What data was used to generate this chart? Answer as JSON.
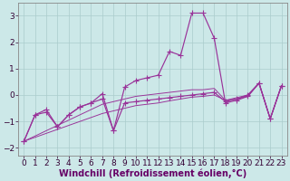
{
  "bg_color": "#cce8e8",
  "grid_color": "#aacccc",
  "line_color": "#993399",
  "xlim": [
    -0.5,
    23.5
  ],
  "ylim": [
    -2.3,
    3.5
  ],
  "xticks": [
    0,
    1,
    2,
    3,
    4,
    5,
    6,
    7,
    8,
    9,
    10,
    11,
    12,
    13,
    14,
    15,
    16,
    17,
    18,
    19,
    20,
    21,
    22,
    23
  ],
  "yticks": [
    -2,
    -1,
    0,
    1,
    2,
    3
  ],
  "x_data": [
    0,
    1,
    2,
    3,
    4,
    5,
    6,
    7,
    8,
    9,
    10,
    11,
    12,
    13,
    14,
    15,
    16,
    17,
    18,
    19,
    20,
    21,
    22,
    23
  ],
  "line_main_y": [
    -1.75,
    -0.75,
    -0.65,
    -1.2,
    -0.75,
    -0.45,
    -0.3,
    0.05,
    -1.35,
    0.3,
    0.55,
    0.65,
    0.75,
    1.65,
    1.5,
    3.1,
    3.1,
    2.15,
    -0.3,
    -0.2,
    -0.05,
    0.45,
    -0.9,
    0.35
  ],
  "line_zigzag_y": [
    -1.75,
    -0.75,
    -0.55,
    -1.2,
    -0.75,
    -0.45,
    -0.3,
    -0.15,
    -1.35,
    -0.3,
    -0.25,
    -0.2,
    -0.15,
    -0.1,
    -0.05,
    0.0,
    0.05,
    0.1,
    -0.25,
    -0.15,
    -0.0,
    0.45,
    -0.9,
    0.35
  ],
  "line_diag1_y": [
    -1.75,
    -1.55,
    -1.35,
    -1.15,
    -0.95,
    -0.75,
    -0.55,
    -0.35,
    -0.25,
    -0.15,
    -0.05,
    0.0,
    0.05,
    0.1,
    0.15,
    0.2,
    0.2,
    0.25,
    -0.2,
    -0.15,
    -0.05,
    0.45,
    -0.9,
    0.35
  ],
  "line_diag2_y": [
    -1.75,
    -1.6,
    -1.45,
    -1.3,
    -1.15,
    -1.0,
    -0.85,
    -0.7,
    -0.6,
    -0.5,
    -0.4,
    -0.35,
    -0.3,
    -0.22,
    -0.15,
    -0.08,
    -0.05,
    0.0,
    -0.2,
    -0.1,
    0.0,
    0.45,
    -0.9,
    0.35
  ],
  "xlabel": "Windchill (Refroidissement éolien,°C)",
  "xlabel_fontsize": 7.0,
  "tick_fontsize": 6.5
}
